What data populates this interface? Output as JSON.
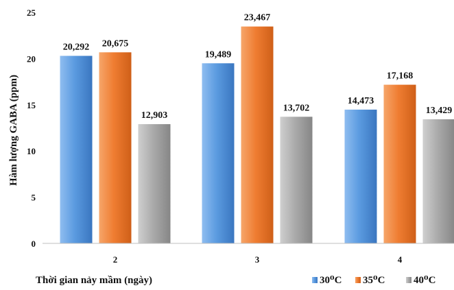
{
  "chart_data": {
    "type": "bar",
    "categories": [
      "2",
      "3",
      "4"
    ],
    "series": [
      {
        "name": "30⁰C",
        "values": [
          20.292,
          19.489,
          14.473
        ],
        "labels": [
          "20,292",
          "19,489",
          "14,473"
        ],
        "color": "#4e8fd8"
      },
      {
        "name": "35⁰C",
        "values": [
          20.675,
          23.467,
          17.168
        ],
        "labels": [
          "20,675",
          "23,467",
          "17,168"
        ],
        "color": "#ee7b30"
      },
      {
        "name": "40⁰C",
        "values": [
          12.903,
          13.702,
          13.429
        ],
        "labels": [
          "12,903",
          "13,702",
          "13,429"
        ],
        "color": "#a3a3a3"
      }
    ],
    "xlabel": "Thời gian nảy mầm (ngày)",
    "ylabel": "Hàm lượng GABA (ppm)",
    "ylim": [
      0,
      25
    ],
    "yticks": [
      0,
      5,
      10,
      15,
      20,
      25
    ],
    "grid": false,
    "legend": "bottom-right"
  }
}
